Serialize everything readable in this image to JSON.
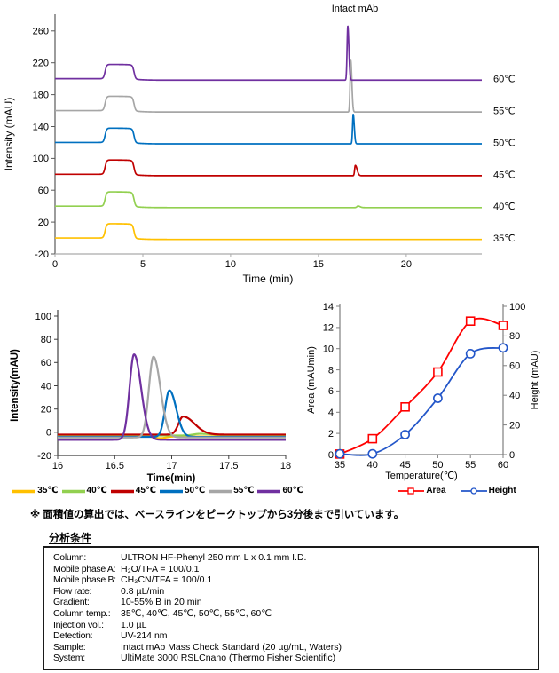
{
  "note": "※ 面積値の算出では、ベースラインをピークトップから3分後まで引いています。",
  "conditions": {
    "title": "分析条件",
    "rows": [
      {
        "label": "Column:",
        "value": "ULTRON HF-Phenyl  250 mm L x 0.1 mm I.D."
      },
      {
        "label": "Mobile phase A:",
        "value": "H₂O/TFA = 100/0.1"
      },
      {
        "label": "Mobile phase B:",
        "value": "CH₃CN/TFA = 100/0.1"
      },
      {
        "label": "Flow rate:",
        "value": "0.8 µL/min"
      },
      {
        "label": "Gradient:",
        "value": "10-55% B in 20 min"
      },
      {
        "label": "Column temp.:",
        "value": "35℃, 40℃, 45℃, 50℃, 55℃, 60℃"
      },
      {
        "label": "Injection vol.:",
        "value": "1.0 µL"
      },
      {
        "label": "Detection:",
        "value": "UV-214 nm"
      },
      {
        "label": "Sample:",
        "value": "Intact mAb Mass Check Standard (20 µg/mL, Waters)"
      },
      {
        "label": "System:",
        "value": "UltiMate 3000 RSLCnano  (Thermo Fisher Scientific)"
      }
    ]
  },
  "chart_data": [
    {
      "id": "full-chromatogram",
      "type": "line",
      "annotation": "Intact mAb",
      "xlabel": "Time (min)",
      "ylabel": "Intensity (mAU)",
      "xlim": [
        0,
        24.3
      ],
      "ylim": [
        -20,
        281
      ],
      "x_ticks": [
        0,
        5,
        10,
        15,
        20
      ],
      "y_ticks": [
        -20,
        20,
        60,
        100,
        140,
        180,
        220,
        260
      ],
      "injection_bump": {
        "start": 2.85,
        "end": 4.5,
        "height": 18
      },
      "series": [
        {
          "name": "35℃",
          "color": "#FFC000",
          "baseline": 0,
          "peak_rt": 17.3,
          "peak_height": 0,
          "peak_sigma": [
            0.05,
            0.09
          ]
        },
        {
          "name": "40℃",
          "color": "#92D050",
          "baseline": 40,
          "peak_rt": 17.25,
          "peak_height": 2,
          "peak_sigma": [
            0.06,
            0.12
          ]
        },
        {
          "name": "45℃",
          "color": "#C00000",
          "baseline": 80,
          "peak_rt": 17.1,
          "peak_height": 13,
          "peak_sigma": [
            0.04,
            0.1
          ]
        },
        {
          "name": "50℃",
          "color": "#0070C0",
          "baseline": 120,
          "peak_rt": 16.98,
          "peak_height": 37,
          "peak_sigma": [
            0.038,
            0.06
          ]
        },
        {
          "name": "55℃",
          "color": "#A6A6A6",
          "baseline": 160,
          "peak_rt": 16.84,
          "peak_height": 65,
          "peak_sigma": [
            0.04,
            0.062
          ]
        },
        {
          "name": "60℃",
          "color": "#7030A0",
          "baseline": 200,
          "peak_rt": 16.67,
          "peak_height": 68,
          "peak_sigma": [
            0.04,
            0.062
          ]
        }
      ],
      "right_labels": [
        "60℃",
        "55℃",
        "50℃",
        "45℃",
        "40℃",
        "35℃"
      ]
    },
    {
      "id": "zoom-chromatogram",
      "type": "line",
      "xlabel": "Time(min)",
      "ylabel": "Intensity(mAU)",
      "xlim": [
        16,
        18
      ],
      "ylim": [
        -20,
        100
      ],
      "x_ticks": [
        16,
        16.5,
        17,
        17.5,
        18
      ],
      "y_ticks": [
        -20,
        0,
        20,
        40,
        60,
        80,
        100
      ],
      "series": [
        {
          "name": "35℃",
          "color": "#FFC000",
          "baseline": -3.6,
          "peak_rt": 16.9,
          "peak_height": -1.5,
          "peak_sigma": [
            0.05,
            0.05
          ]
        },
        {
          "name": "40℃",
          "color": "#92D050",
          "baseline": -2.8,
          "peak_rt": 17.25,
          "peak_height": 1.5,
          "peak_sigma": [
            0.06,
            0.12
          ]
        },
        {
          "name": "45℃",
          "color": "#C00000",
          "baseline": -2.0,
          "peak_rt": 17.1,
          "peak_height": 15.5,
          "peak_sigma": [
            0.04,
            0.1
          ]
        },
        {
          "name": "50℃",
          "color": "#0070C0",
          "baseline": -4.0,
          "peak_rt": 16.98,
          "peak_height": 40,
          "peak_sigma": [
            0.038,
            0.06
          ]
        },
        {
          "name": "55℃",
          "color": "#A6A6A6",
          "baseline": -4.5,
          "peak_rt": 16.84,
          "peak_height": 69.5,
          "peak_sigma": [
            0.04,
            0.062
          ]
        },
        {
          "name": "60℃",
          "color": "#7030A0",
          "baseline": -6.5,
          "peak_rt": 16.67,
          "peak_height": 73.5,
          "peak_sigma": [
            0.04,
            0.062
          ]
        }
      ],
      "legend": [
        "35℃",
        "40℃",
        "45℃",
        "50℃",
        "55℃",
        "60℃"
      ]
    },
    {
      "id": "area-height-vs-temperature",
      "type": "line-scatter",
      "xlabel": "Temperature(℃)",
      "ylabel_left": "Area (mAUmin)",
      "ylabel_right": "Height (mAU)",
      "x": [
        35,
        40,
        45,
        50,
        55,
        60
      ],
      "xlim": [
        35,
        60
      ],
      "ylim_left": [
        0,
        14
      ],
      "ylim_right": [
        0,
        100
      ],
      "y_ticks_left": [
        0,
        2,
        4,
        6,
        8,
        10,
        12,
        14
      ],
      "y_ticks_right": [
        0,
        20,
        40,
        60,
        80,
        100
      ],
      "series": [
        {
          "name": "Area",
          "axis": "left",
          "color": "#FF0000",
          "marker": "square",
          "values": [
            0.05,
            1.5,
            4.5,
            7.8,
            12.6,
            12.2
          ]
        },
        {
          "name": "Height",
          "axis": "right",
          "color": "#2356C9",
          "marker": "circle",
          "values": [
            0.5,
            0.5,
            13.5,
            38,
            68,
            72
          ]
        }
      ],
      "legend": [
        "Area",
        "Height"
      ]
    }
  ]
}
